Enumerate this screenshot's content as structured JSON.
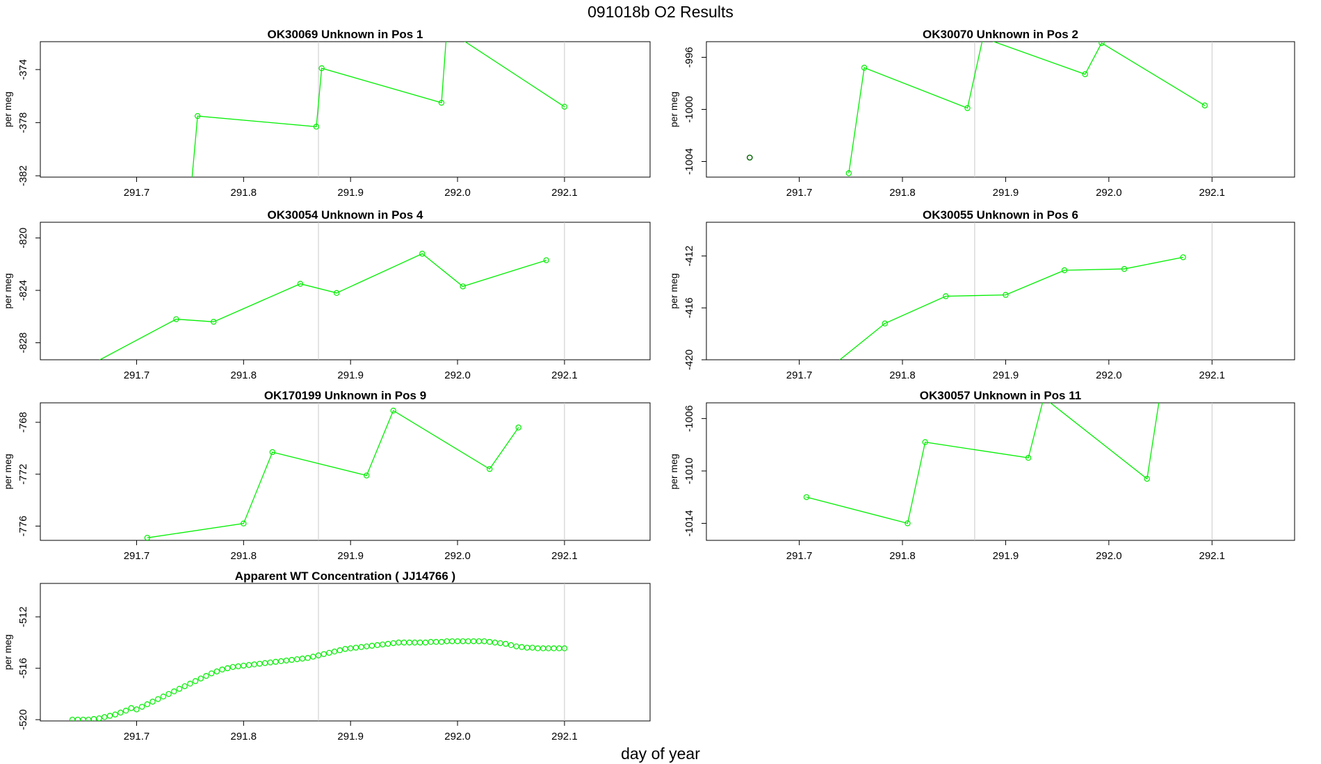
{
  "page": {
    "title": "091018b  O2 Results",
    "xlabel": "day of year"
  },
  "chart_data": [
    {
      "type": "line",
      "title": "OK30069    Unknown in Pos 1",
      "ylabel": "per meg",
      "xlim": [
        291.61,
        292.18
      ],
      "ylim": [
        -382.1,
        -371.9
      ],
      "xticks": [
        "291.7",
        "291.8",
        "291.9",
        "292.0",
        "292.1"
      ],
      "xtick_values": [
        291.7,
        291.8,
        291.9,
        292.0,
        292.1
      ],
      "yticks": [
        "-382",
        "-378",
        "-374"
      ],
      "ytick_values": [
        -382,
        -378,
        -374
      ],
      "vlines": [
        291.87,
        292.1
      ],
      "marker_color": "#00ee00",
      "line_color": "#00ee00",
      "connect": true,
      "x": [
        291.75,
        291.757,
        291.868,
        291.873,
        291.985,
        291.99,
        292.1
      ],
      "y": [
        -383.8,
        -377.5,
        -378.3,
        -373.9,
        -376.5,
        -371.0,
        -376.8
      ],
      "markers": [
        false,
        true,
        true,
        true,
        true,
        false,
        true
      ]
    },
    {
      "type": "line",
      "title": "OK30070    Unknown in Pos 2",
      "ylabel": "per meg",
      "xlim": [
        291.61,
        292.18
      ],
      "ylim": [
        -1005.2,
        -994.8
      ],
      "xticks": [
        "291.7",
        "291.8",
        "291.9",
        "292.0",
        "292.1"
      ],
      "xtick_values": [
        291.7,
        291.8,
        291.9,
        292.0,
        292.1
      ],
      "yticks": [
        "-1004",
        "-1000",
        "-996"
      ],
      "ytick_values": [
        -1004,
        -1000,
        -996
      ],
      "vlines": [
        291.87,
        292.1
      ],
      "marker_color": "#00ee00",
      "line_color": "#00ee00",
      "connect": true,
      "x": [
        291.748,
        291.763,
        291.863,
        291.878,
        291.977,
        291.993,
        292.093
      ],
      "y": [
        -1004.9,
        -996.8,
        -999.9,
        -994.5,
        -997.3,
        -994.9,
        -999.7
      ],
      "markers": [
        true,
        true,
        true,
        true,
        true,
        true,
        true
      ],
      "extra_points": [
        {
          "x": 291.652,
          "y": -1003.7,
          "color": "#006400"
        }
      ]
    },
    {
      "type": "line",
      "title": "OK30054    Unknown in Pos 4",
      "ylabel": "per meg",
      "xlim": [
        291.61,
        292.18
      ],
      "ylim": [
        -829.3,
        -818.8
      ],
      "xticks": [
        "291.7",
        "291.8",
        "291.9",
        "292.0",
        "292.1"
      ],
      "xtick_values": [
        291.7,
        291.8,
        291.9,
        292.0,
        292.1
      ],
      "yticks": [
        "-828",
        "-824",
        "-820"
      ],
      "ytick_values": [
        -828,
        -824,
        -820
      ],
      "vlines": [
        291.87,
        292.1
      ],
      "marker_color": "#00ee00",
      "line_color": "#00ee00",
      "connect": true,
      "x": [
        291.661,
        291.737,
        291.772,
        291.853,
        291.887,
        291.967,
        292.005,
        292.083
      ],
      "y": [
        -829.5,
        -826.2,
        -826.4,
        -823.5,
        -824.2,
        -821.2,
        -823.7,
        -821.7
      ],
      "markers": [
        false,
        true,
        true,
        true,
        true,
        true,
        true,
        true
      ]
    },
    {
      "type": "line",
      "title": "OK30055    Unknown in Pos 6",
      "ylabel": "per meg",
      "xlim": [
        291.61,
        292.18
      ],
      "ylim": [
        -420.0,
        -409.4
      ],
      "xticks": [
        "291.7",
        "291.8",
        "291.9",
        "292.0",
        "292.1"
      ],
      "xtick_values": [
        291.7,
        291.8,
        291.9,
        292.0,
        292.1
      ],
      "yticks": [
        "-420",
        "-416",
        "-412"
      ],
      "ytick_values": [
        -420,
        -416,
        -412
      ],
      "vlines": [
        291.87,
        292.1
      ],
      "marker_color": "#00ee00",
      "line_color": "#00ee00",
      "connect": true,
      "x": [
        291.73,
        291.783,
        291.842,
        291.9,
        291.957,
        292.015,
        292.072
      ],
      "y": [
        -420.6,
        -417.2,
        -415.1,
        -415.0,
        -413.1,
        -413.0,
        -412.1
      ],
      "markers": [
        false,
        true,
        true,
        true,
        true,
        true,
        true
      ]
    },
    {
      "type": "line",
      "title": "OK170199    Unknown in Pos 9",
      "ylabel": "per meg",
      "xlim": [
        291.61,
        292.18
      ],
      "ylim": [
        -777.1,
        -766.5
      ],
      "xticks": [
        "291.7",
        "291.8",
        "291.9",
        "292.0",
        "292.1"
      ],
      "xtick_values": [
        291.7,
        291.8,
        291.9,
        292.0,
        292.1
      ],
      "yticks": [
        "-776",
        "-772",
        "-768"
      ],
      "ytick_values": [
        -776,
        -772,
        -768
      ],
      "vlines": [
        291.87,
        292.1
      ],
      "marker_color": "#00ee00",
      "line_color": "#00ee00",
      "connect": true,
      "x": [
        291.71,
        291.8,
        291.827,
        291.915,
        291.94,
        292.03,
        292.057
      ],
      "y": [
        -776.9,
        -775.8,
        -770.3,
        -772.1,
        -767.1,
        -771.6,
        -768.4
      ],
      "markers": [
        true,
        true,
        true,
        true,
        true,
        true,
        true
      ]
    },
    {
      "type": "line",
      "title": "OK30057    Unknown in Pos 11",
      "ylabel": "per meg",
      "xlim": [
        291.61,
        292.18
      ],
      "ylim": [
        -1015.3,
        -1004.8
      ],
      "xticks": [
        "291.7",
        "291.8",
        "291.9",
        "292.0",
        "292.1"
      ],
      "xtick_values": [
        291.7,
        291.8,
        291.9,
        292.0,
        292.1
      ],
      "yticks": [
        "-1014",
        "-1010",
        "-1006"
      ],
      "ytick_values": [
        -1014,
        -1010,
        -1006
      ],
      "vlines": [
        291.87,
        292.1
      ],
      "marker_color": "#00ee00",
      "line_color": "#00ee00",
      "connect": true,
      "x": [
        291.707,
        291.805,
        291.822,
        291.922,
        291.937,
        292.037,
        292.05
      ],
      "y": [
        -1012.0,
        -1014.0,
        -1007.8,
        -1009.0,
        -1004.4,
        -1010.6,
        -1004.0
      ],
      "markers": [
        true,
        true,
        true,
        true,
        false,
        true,
        false
      ]
    },
    {
      "type": "scatter",
      "title": "Apparent WT Concentration ( JJ14766 )",
      "ylabel": "per meg",
      "xlim": [
        291.61,
        292.18
      ],
      "ylim": [
        -520.1,
        -509.4
      ],
      "xticks": [
        "291.7",
        "291.8",
        "291.9",
        "292.0",
        "292.1"
      ],
      "xtick_values": [
        291.7,
        291.8,
        291.9,
        292.0,
        292.1
      ],
      "yticks": [
        "-520",
        "-516",
        "-512"
      ],
      "ytick_values": [
        -520,
        -516,
        -512
      ],
      "vlines": [
        291.87,
        292.1
      ],
      "marker_color": "#00ee00",
      "connect": false,
      "x": [
        291.64,
        291.645,
        291.65,
        291.655,
        291.66,
        291.665,
        291.67,
        291.675,
        291.68,
        291.685,
        291.69,
        291.695,
        291.7,
        291.705,
        291.71,
        291.715,
        291.72,
        291.725,
        291.73,
        291.735,
        291.74,
        291.745,
        291.75,
        291.755,
        291.76,
        291.765,
        291.77,
        291.775,
        291.78,
        291.785,
        291.79,
        291.795,
        291.8,
        291.805,
        291.81,
        291.815,
        291.82,
        291.825,
        291.83,
        291.835,
        291.84,
        291.845,
        291.85,
        291.855,
        291.86,
        291.865,
        291.87,
        291.875,
        291.88,
        291.885,
        291.89,
        291.895,
        291.9,
        291.905,
        291.91,
        291.915,
        291.92,
        291.925,
        291.93,
        291.935,
        291.94,
        291.945,
        291.95,
        291.955,
        291.96,
        291.965,
        291.97,
        291.975,
        291.98,
        291.985,
        291.99,
        291.995,
        292.0,
        292.005,
        292.01,
        292.015,
        292.02,
        292.025,
        292.03,
        292.035,
        292.04,
        292.045,
        292.05,
        292.055,
        292.06,
        292.065,
        292.07,
        292.075,
        292.08,
        292.085,
        292.09,
        292.095,
        292.1
      ],
      "y": [
        -520.0,
        -520.0,
        -520.0,
        -520.0,
        -519.95,
        -519.9,
        -519.8,
        -519.7,
        -519.6,
        -519.45,
        -519.3,
        -519.1,
        -519.2,
        -519.0,
        -518.8,
        -518.6,
        -518.4,
        -518.2,
        -518.0,
        -517.8,
        -517.6,
        -517.4,
        -517.2,
        -517.0,
        -516.8,
        -516.6,
        -516.4,
        -516.25,
        -516.1,
        -516.0,
        -515.9,
        -515.85,
        -515.8,
        -515.75,
        -515.7,
        -515.65,
        -515.6,
        -515.55,
        -515.5,
        -515.45,
        -515.4,
        -515.35,
        -515.3,
        -515.25,
        -515.2,
        -515.1,
        -515.0,
        -514.9,
        -514.8,
        -514.7,
        -514.6,
        -514.5,
        -514.45,
        -514.4,
        -514.35,
        -514.3,
        -514.25,
        -514.2,
        -514.15,
        -514.1,
        -514.05,
        -514.0,
        -514.0,
        -514.0,
        -514.0,
        -514.0,
        -514.0,
        -513.95,
        -513.95,
        -513.95,
        -513.9,
        -513.9,
        -513.9,
        -513.9,
        -513.9,
        -513.9,
        -513.9,
        -513.9,
        -513.95,
        -514.0,
        -514.05,
        -514.1,
        -514.2,
        -514.3,
        -514.35,
        -514.4,
        -514.4,
        -514.45,
        -514.45,
        -514.45,
        -514.45,
        -514.45,
        -514.45
      ]
    }
  ]
}
